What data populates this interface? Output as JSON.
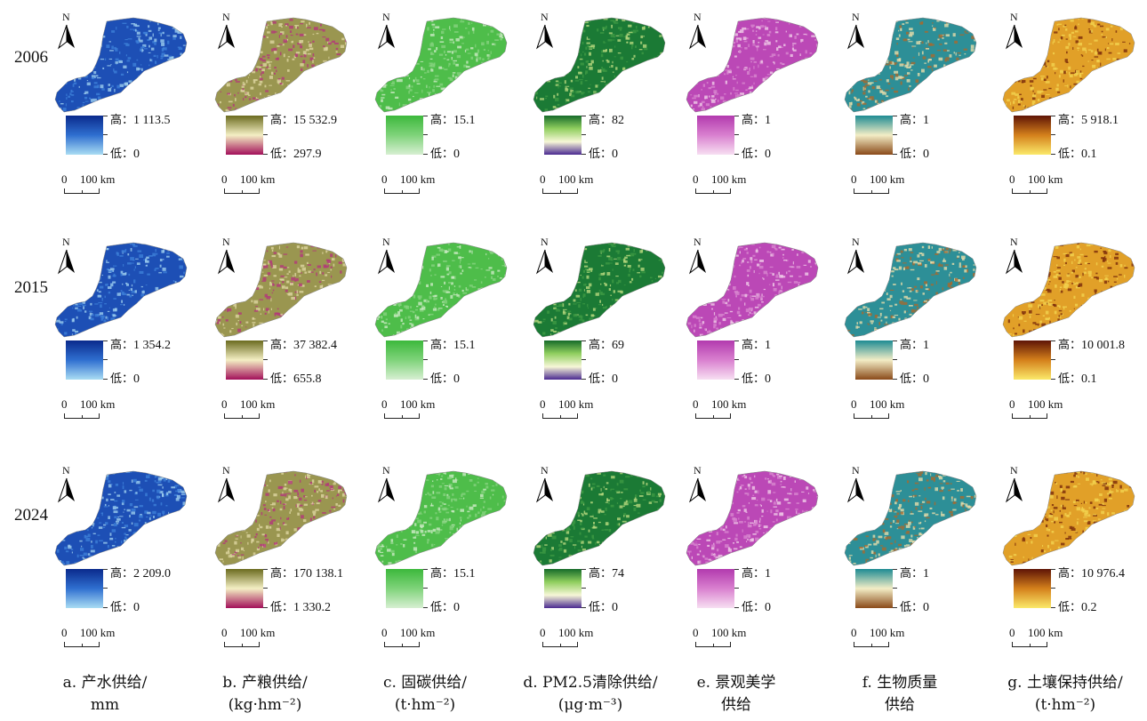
{
  "years": [
    "2006",
    "2015",
    "2024"
  ],
  "north_label": "N",
  "legend": {
    "high_prefix": "高：",
    "low_prefix": "低："
  },
  "scale": {
    "zero": "0",
    "distance": "100 km"
  },
  "columns": [
    {
      "id": "a",
      "caption_line1": "a.  产水供给/",
      "caption_line2": "mm",
      "gradient": [
        "#0a2a8c",
        "#2f6fd0",
        "#a9dcf3"
      ],
      "map_colors": [
        "#1d4fb5",
        "#3d7fd8",
        "#9ccdef"
      ],
      "values": [
        {
          "high": "1 113.5",
          "low": "0"
        },
        {
          "high": "1 354.2",
          "low": "0"
        },
        {
          "high": "2 209.0",
          "low": "0"
        }
      ]
    },
    {
      "id": "b",
      "caption_line1": "b.  产粮供给/",
      "caption_line2": "(kg·hm⁻²)",
      "gradient": [
        "#6b6b1f",
        "#f4efc4",
        "#a3105a"
      ],
      "map_colors": [
        "#9a9650",
        "#ddd6a0",
        "#b3377a"
      ],
      "values": [
        {
          "high": "15 532.9",
          "low": "297.9"
        },
        {
          "high": "37 382.4",
          "low": "655.8"
        },
        {
          "high": "170 138.1",
          "low": "1 330.2"
        }
      ]
    },
    {
      "id": "c",
      "caption_line1": "c.  固碳供给/",
      "caption_line2": "(t·hm⁻²)",
      "gradient": [
        "#3cb83c",
        "#7fd37a",
        "#d7efd2"
      ],
      "map_colors": [
        "#4ebd4a",
        "#86d27e",
        "#cbeac3"
      ],
      "values": [
        {
          "high": "15.1",
          "low": "0"
        },
        {
          "high": "15.1",
          "low": "0"
        },
        {
          "high": "15.1",
          "low": "0"
        }
      ]
    },
    {
      "id": "d",
      "caption_line1": "d.  PM2.5清除供给/",
      "caption_line2": "(μg·m⁻³)",
      "gradient": [
        "#166b2a",
        "#8fce5e",
        "#f7f7d7",
        "#4b2a91"
      ],
      "map_colors": [
        "#1b7a35",
        "#3d9a44",
        "#b6d87e"
      ],
      "values": [
        {
          "high": "82",
          "low": "0"
        },
        {
          "high": "69",
          "low": "0"
        },
        {
          "high": "74",
          "low": "0"
        }
      ]
    },
    {
      "id": "e",
      "caption_line1": "e.  景观美学",
      "caption_line2": "供给",
      "gradient": [
        "#b23aae",
        "#d980cf",
        "#f7dff2"
      ],
      "map_colors": [
        "#bb48b6",
        "#d887d0",
        "#f0cde9"
      ],
      "values": [
        {
          "high": "1",
          "low": "0"
        },
        {
          "high": "1",
          "low": "0"
        },
        {
          "high": "1",
          "low": "0"
        }
      ]
    },
    {
      "id": "f",
      "caption_line1": "f.  生物质量",
      "caption_line2": "供给",
      "gradient": [
        "#1e8b93",
        "#f3edc6",
        "#8a4a19"
      ],
      "map_colors": [
        "#2d8f97",
        "#e6dcaa",
        "#a8692e"
      ],
      "values": [
        {
          "high": "1",
          "low": "0"
        },
        {
          "high": "1",
          "low": "0"
        },
        {
          "high": "1",
          "low": "0"
        }
      ]
    },
    {
      "id": "g",
      "caption_line1": "g.  土壤保持供给/",
      "caption_line2": "(t·hm⁻²)",
      "gradient": [
        "#5e1406",
        "#d4801b",
        "#fbe96a"
      ],
      "map_colors": [
        "#e1a028",
        "#f2d34f",
        "#7a2a0a"
      ],
      "values": [
        {
          "high": "5 918.1",
          "low": "0.1"
        },
        {
          "high": "10 001.8",
          "low": "0.1"
        },
        {
          "high": "10 976.4",
          "low": "0.2"
        }
      ]
    }
  ]
}
